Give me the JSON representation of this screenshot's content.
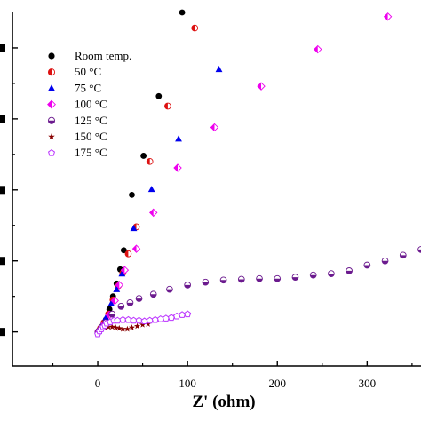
{
  "chart_data": {
    "type": "scatter",
    "title": "",
    "xlabel": "Z' (ohm)",
    "ylabel": "",
    "xlim": [
      -95,
      360
    ],
    "ylim": [
      -48,
      450
    ],
    "x_ticks": [
      0,
      100,
      200,
      300
    ],
    "y_ticks": [
      0,
      100,
      200,
      300,
      400
    ],
    "y_tick_labels_visible": false,
    "grid": false,
    "legend_position": "top-left",
    "series": [
      {
        "name": "Room temp.",
        "marker": "circle-filled",
        "color": "#000000",
        "points": [
          [
            0,
            0
          ],
          [
            2,
            3
          ],
          [
            5,
            8
          ],
          [
            9,
            17
          ],
          [
            13,
            32
          ],
          [
            17,
            50
          ],
          [
            21,
            68
          ],
          [
            25,
            88
          ],
          [
            29,
            115
          ],
          [
            38,
            193
          ],
          [
            51,
            248
          ],
          [
            68,
            332
          ],
          [
            94,
            450
          ]
        ]
      },
      {
        "name": "50 °C",
        "marker": "circle-half-red",
        "color": "#dd1111",
        "points": [
          [
            1,
            1
          ],
          [
            3,
            5
          ],
          [
            7,
            13
          ],
          [
            12,
            25
          ],
          [
            17,
            45
          ],
          [
            23,
            65
          ],
          [
            28,
            83
          ],
          [
            34,
            110
          ],
          [
            43,
            148
          ],
          [
            58,
            240
          ],
          [
            78,
            318
          ],
          [
            108,
            428
          ]
        ]
      },
      {
        "name": "75 °C",
        "marker": "triangle-up",
        "color": "#0000ee",
        "points": [
          [
            1,
            1
          ],
          [
            4,
            8
          ],
          [
            9,
            20
          ],
          [
            15,
            40
          ],
          [
            21,
            60
          ],
          [
            27,
            82
          ],
          [
            40,
            146
          ],
          [
            60,
            201
          ],
          [
            90,
            272
          ],
          [
            135,
            370
          ]
        ]
      },
      {
        "name": "100 °C",
        "marker": "diamond-half-magenta",
        "color": "#ee00ee",
        "points": [
          [
            1,
            1
          ],
          [
            4,
            5
          ],
          [
            8,
            12
          ],
          [
            13,
            24
          ],
          [
            19,
            44
          ],
          [
            24,
            66
          ],
          [
            30,
            87
          ],
          [
            43,
            117
          ],
          [
            62,
            168
          ],
          [
            89,
            231
          ],
          [
            130,
            288
          ],
          [
            182,
            346
          ],
          [
            245,
            398
          ],
          [
            323,
            444
          ]
        ]
      },
      {
        "name": "125 °C",
        "marker": "circle-half-purple",
        "color": "#6b1a8e",
        "points": [
          [
            1,
            1
          ],
          [
            4,
            6
          ],
          [
            9,
            13
          ],
          [
            16,
            25
          ],
          [
            26,
            36
          ],
          [
            36,
            41
          ],
          [
            46,
            47
          ],
          [
            62,
            53
          ],
          [
            80,
            60
          ],
          [
            100,
            66
          ],
          [
            120,
            70
          ],
          [
            140,
            73
          ],
          [
            160,
            74
          ],
          [
            180,
            75
          ],
          [
            200,
            75
          ],
          [
            220,
            77
          ],
          [
            240,
            80
          ],
          [
            260,
            82
          ],
          [
            280,
            86
          ],
          [
            300,
            94
          ],
          [
            320,
            100
          ],
          [
            340,
            108
          ],
          [
            360,
            116
          ]
        ]
      },
      {
        "name": "150 °C",
        "marker": "star",
        "color": "#880000",
        "points": [
          [
            1,
            1
          ],
          [
            4,
            4
          ],
          [
            8,
            6
          ],
          [
            12,
            7
          ],
          [
            16,
            7
          ],
          [
            20,
            6
          ],
          [
            24,
            5
          ],
          [
            28,
            4
          ],
          [
            33,
            4
          ],
          [
            38,
            6
          ],
          [
            44,
            8
          ],
          [
            50,
            10
          ],
          [
            56,
            11
          ]
        ]
      },
      {
        "name": "175 °C",
        "marker": "pentagon-open",
        "color": "#bb33ff",
        "points": [
          [
            0,
            -3
          ],
          [
            2,
            1
          ],
          [
            4,
            4
          ],
          [
            6,
            7
          ],
          [
            8,
            9
          ],
          [
            10,
            12
          ],
          [
            14,
            14
          ],
          [
            18,
            16
          ],
          [
            22,
            16
          ],
          [
            28,
            17
          ],
          [
            34,
            17
          ],
          [
            40,
            16
          ],
          [
            46,
            16
          ],
          [
            52,
            15
          ],
          [
            58,
            16
          ],
          [
            64,
            17
          ],
          [
            70,
            18
          ],
          [
            76,
            19
          ],
          [
            82,
            20
          ],
          [
            88,
            22
          ],
          [
            94,
            24
          ],
          [
            100,
            25
          ]
        ]
      }
    ]
  }
}
